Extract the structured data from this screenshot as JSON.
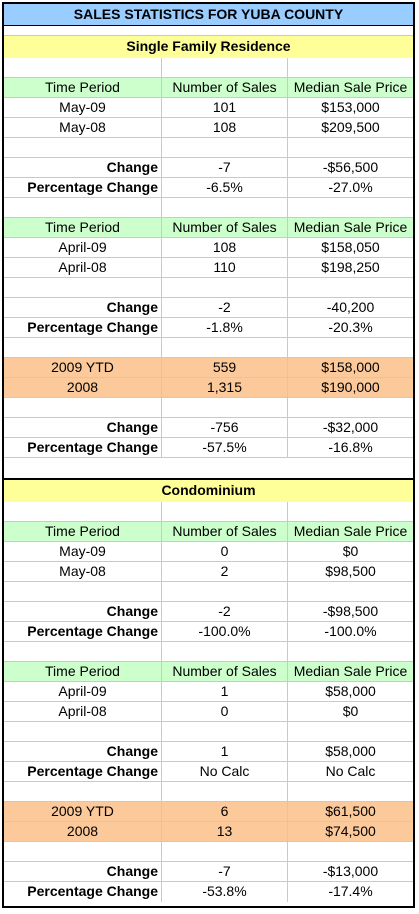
{
  "title": "SALES STATISTICS FOR YUBA COUNTY",
  "headers": [
    "Time Period",
    "Number of Sales",
    "Median Sale Price"
  ],
  "labels": {
    "change": "Change",
    "pct_change": "Percentage Change"
  },
  "sfr": {
    "name": "Single Family Residence",
    "may": {
      "r1": [
        "May-09",
        "101",
        "$153,000"
      ],
      "r2": [
        "May-08",
        "108",
        "$209,500"
      ],
      "change": [
        "-7",
        "-$56,500"
      ],
      "pct": [
        "-6.5%",
        "-27.0%"
      ]
    },
    "apr": {
      "r1": [
        "April-09",
        "108",
        "$158,050"
      ],
      "r2": [
        "April-08",
        "110",
        "$198,250"
      ],
      "change": [
        "-2",
        "-40,200"
      ],
      "pct": [
        "-1.8%",
        "-20.3%"
      ]
    },
    "ytd": {
      "r1": [
        "2009 YTD",
        "559",
        "$158,000"
      ],
      "r2": [
        "2008",
        "1,315",
        "$190,000"
      ],
      "change": [
        "-756",
        "-$32,000"
      ],
      "pct": [
        "-57.5%",
        "-16.8%"
      ]
    }
  },
  "condo": {
    "name": "Condominium",
    "may": {
      "r1": [
        "May-09",
        "0",
        "$0"
      ],
      "r2": [
        "May-08",
        "2",
        "$98,500"
      ],
      "change": [
        "-2",
        "-$98,500"
      ],
      "pct": [
        "-100.0%",
        "-100.0%"
      ]
    },
    "apr": {
      "r1": [
        "April-09",
        "1",
        "$58,000"
      ],
      "r2": [
        "April-08",
        "0",
        "$0"
      ],
      "change": [
        "1",
        "$58,000"
      ],
      "pct": [
        "No Calc",
        "No Calc"
      ]
    },
    "ytd": {
      "r1": [
        "2009 YTD",
        "6",
        "$61,500"
      ],
      "r2": [
        "2008",
        "13",
        "$74,500"
      ],
      "change": [
        "-7",
        "-$13,000"
      ],
      "pct": [
        "-53.8%",
        "-17.4%"
      ]
    }
  }
}
